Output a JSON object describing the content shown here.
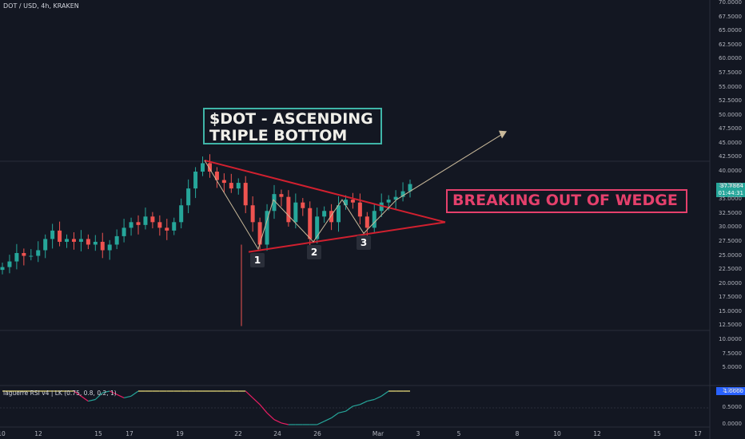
{
  "header": {
    "symbol_line": "DOT / USD, 4h, KRAKEN"
  },
  "indicator": {
    "label": "laguerre RSI v4 | LK (0.75, 0.8, 0.2, 1)"
  },
  "annotations": {
    "title_line1": "$DOT - ASCENDING",
    "title_line2": "TRIPLE BOTTOM",
    "breakout": "BREAKING OUT OF WEDGE",
    "bottom1": "1",
    "bottom2": "2",
    "bottom3": "3"
  },
  "price_badge": {
    "price": "37.7864",
    "countdown": "01:44:31"
  },
  "rsi_badge": "1.0000",
  "colors": {
    "up": "#26a69a",
    "down": "#ef5350",
    "wedge": "#d1202f",
    "pattern": "#c9b99a",
    "rsi_up": "#26a69a",
    "rsi_down": "#e91e63",
    "rsi_flat": "#f5e680"
  },
  "chart_data": {
    "type": "candlestick",
    "title": "DOT / USD, 4h, KRAKEN",
    "currency": "USD",
    "ylim": [
      3.75,
      70.0
    ],
    "y_ticks": [
      "70.0000",
      "67.5000",
      "65.0000",
      "62.5000",
      "60.0000",
      "57.5000",
      "55.0000",
      "52.5000",
      "50.0000",
      "47.5000",
      "45.0000",
      "42.5000",
      "40.0000",
      "37.5000",
      "35.0000",
      "32.5000",
      "30.0000",
      "27.5000",
      "25.0000",
      "22.5000",
      "20.0000",
      "17.5000",
      "15.0000",
      "12.5000",
      "10.0000",
      "7.5000",
      "5.0000"
    ],
    "x_ticks": [
      "10",
      "12",
      "15",
      "17",
      "19",
      "22",
      "24",
      "26",
      "Mar",
      "3",
      "5",
      "8",
      "10",
      "12",
      "15",
      "17"
    ],
    "last_price": 37.7864,
    "candles_close_approx": [
      23,
      24,
      25.5,
      25,
      25,
      26,
      28,
      29.5,
      27.5,
      28,
      27.5,
      28,
      27,
      27.5,
      26,
      27,
      28.5,
      30,
      31,
      30.5,
      32,
      31,
      30,
      29.5,
      31,
      34,
      37,
      40,
      41.5,
      40,
      38.5,
      38,
      37,
      38,
      34,
      31,
      27,
      33,
      36,
      35.5,
      31,
      34.5,
      33.5,
      28,
      32,
      33,
      31,
      34,
      35,
      34.5,
      32,
      30,
      33,
      34.5,
      35,
      35.5,
      36.5,
      37.7864
    ],
    "rsi_ticks": [
      "1.0000",
      "0.5000",
      "0.0000"
    ],
    "rsi_ylim": [
      0,
      1
    ]
  }
}
